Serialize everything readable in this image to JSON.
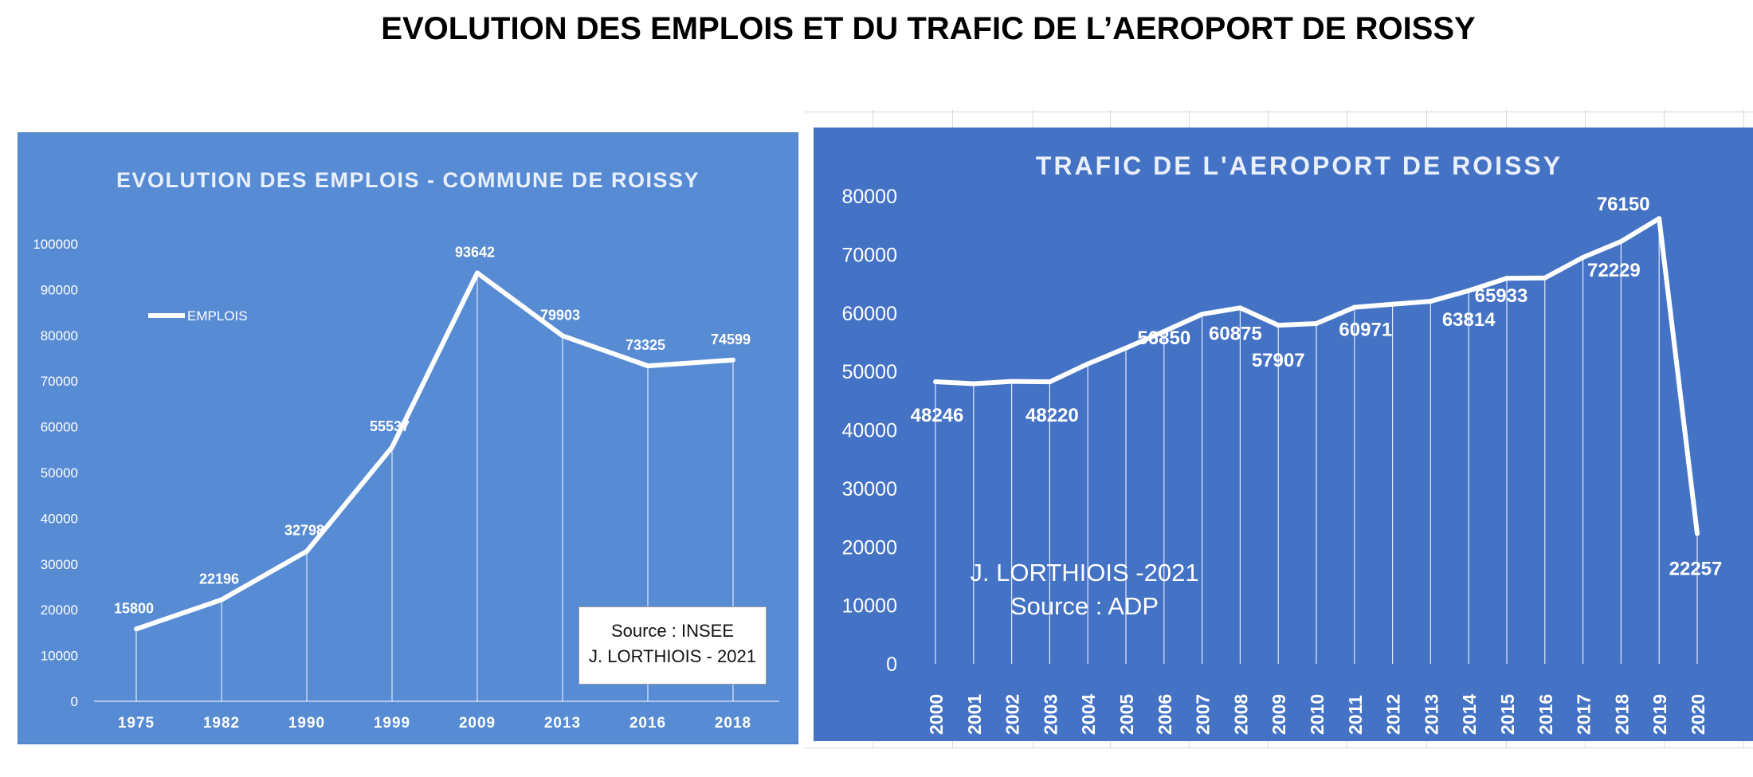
{
  "title": "EVOLUTION DES EMPLOIS ET DU TRAFIC DE L’AEROPORT DE ROISSY",
  "colors": {
    "left_panel": "#578bd4",
    "right_panel": "#4472c5",
    "line": "#ffffff"
  },
  "chart_data": [
    {
      "type": "line",
      "title": "EVOLUTION DES EMPLOIS - COMMUNE DE ROISSY",
      "x": [
        "1975",
        "1982",
        "1990",
        "1999",
        "2009",
        "2013",
        "2016",
        "2018"
      ],
      "series": [
        {
          "name": "EMPLOIS",
          "values": [
            15800,
            22196,
            32798,
            55537,
            93642,
            79903,
            73325,
            74599
          ]
        }
      ],
      "data_labels": [
        "15800",
        "22196",
        "32798",
        "55537",
        "93642",
        "79903",
        "73325",
        "74599"
      ],
      "ylim": [
        0,
        100000
      ],
      "yticks": [
        "0",
        "10000",
        "20000",
        "30000",
        "40000",
        "50000",
        "60000",
        "70000",
        "80000",
        "90000",
        "100000"
      ],
      "legend": "left",
      "drop_lines": true,
      "source_box": {
        "line1": "Source : INSEE",
        "line2": "J. LORTHIOIS - 2021"
      }
    },
    {
      "type": "line",
      "title": "TRAFIC DE L'AEROPORT DE ROISSY",
      "x": [
        "2000",
        "2001",
        "2002",
        "2003",
        "2004",
        "2005",
        "2006",
        "2007",
        "2008",
        "2009",
        "2010",
        "2011",
        "2012",
        "2013",
        "2014",
        "2015",
        "2016",
        "2017",
        "2018",
        "2019",
        "2020"
      ],
      "series": [
        {
          "values": [
            48246,
            47900,
            48300,
            48220,
            51300,
            54000,
            56850,
            59800,
            60875,
            57907,
            58200,
            60971,
            61500,
            62000,
            63814,
            65933,
            66000,
            69500,
            72229,
            76150,
            22257
          ]
        }
      ],
      "data_labels": [
        {
          "index": 0,
          "text": "48246"
        },
        {
          "index": 3,
          "text": "48220"
        },
        {
          "index": 6,
          "text": "56850"
        },
        {
          "index": 8,
          "text": "60875"
        },
        {
          "index": 9,
          "text": "57907"
        },
        {
          "index": 11,
          "text": "60971"
        },
        {
          "index": 14,
          "text": "63814"
        },
        {
          "index": 15,
          "text": "65933"
        },
        {
          "index": 18,
          "text": "72229"
        },
        {
          "index": 19,
          "text": "76150"
        },
        {
          "index": 20,
          "text": "22257"
        }
      ],
      "ylim": [
        0,
        80000
      ],
      "yticks": [
        "0",
        "10000",
        "20000",
        "30000",
        "40000",
        "50000",
        "60000",
        "70000",
        "80000"
      ],
      "drop_lines": true,
      "source_text": {
        "line1": "J. LORTHIOIS -2021",
        "line2": "Source : ADP"
      }
    }
  ]
}
